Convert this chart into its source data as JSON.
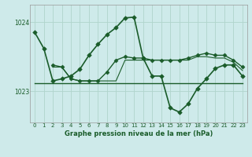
{
  "title": "Graphe pression niveau de la mer (hPa)",
  "bg_color": "#ceeaea",
  "grid_color": "#b0d4cc",
  "line_color": "#1a5c2a",
  "xlim": [
    -0.5,
    23.5
  ],
  "ylim": [
    1022.55,
    1024.25
  ],
  "yticks": [
    1023,
    1024
  ],
  "xticks": [
    0,
    1,
    2,
    3,
    4,
    5,
    6,
    7,
    8,
    9,
    10,
    11,
    12,
    13,
    14,
    15,
    16,
    17,
    18,
    19,
    20,
    21,
    22,
    23
  ],
  "series": [
    {
      "x": [
        0,
        1,
        2,
        3,
        4,
        5,
        6,
        7,
        8,
        9,
        10,
        11,
        12,
        13,
        14,
        15,
        16,
        17,
        18,
        19,
        20,
        21,
        22,
        23
      ],
      "y": [
        1023.85,
        1023.62,
        1023.15,
        1023.18,
        1023.22,
        1023.32,
        1023.52,
        1023.68,
        1023.82,
        1023.92,
        1024.06,
        1024.07,
        1023.48,
        1023.22,
        1023.22,
        1022.76,
        1022.7,
        1022.82,
        1023.04,
        1023.18,
        1023.33,
        1023.38,
        1023.38,
        1023.22
      ],
      "marker": "D",
      "markersize": 2.8,
      "lw": 1.2
    },
    {
      "x": [
        2,
        3,
        4,
        5,
        6,
        7,
        8,
        9,
        10,
        11,
        12,
        13,
        14,
        15,
        16,
        17,
        18,
        19,
        20,
        21,
        22,
        23
      ],
      "y": [
        1023.38,
        1023.35,
        1023.18,
        1023.15,
        1023.15,
        1023.15,
        1023.28,
        1023.45,
        1023.5,
        1023.48,
        1023.48,
        1023.45,
        1023.45,
        1023.45,
        1023.45,
        1023.48,
        1023.52,
        1023.55,
        1023.52,
        1023.52,
        1023.45,
        1023.35
      ],
      "marker": "D",
      "markersize": 2.5,
      "lw": 1.0
    },
    {
      "x": [
        0,
        1,
        2,
        3,
        4,
        5,
        6,
        7,
        8,
        9,
        10,
        11,
        12,
        13,
        14,
        15,
        16,
        17,
        18,
        19,
        20,
        21,
        22,
        23
      ],
      "y": [
        1023.12,
        1023.12,
        1023.12,
        1023.12,
        1023.12,
        1023.12,
        1023.12,
        1023.12,
        1023.12,
        1023.12,
        1023.12,
        1023.12,
        1023.12,
        1023.12,
        1023.12,
        1023.12,
        1023.12,
        1023.12,
        1023.12,
        1023.12,
        1023.12,
        1023.12,
        1023.12,
        1023.12
      ],
      "marker": null,
      "markersize": 0,
      "lw": 1.0
    },
    {
      "x": [
        2,
        3,
        4,
        5,
        6,
        7,
        8,
        9,
        10,
        11,
        12,
        13,
        14,
        15,
        16,
        17,
        18,
        19,
        20,
        21,
        22,
        23
      ],
      "y": [
        1023.35,
        1023.35,
        1023.18,
        1023.15,
        1023.15,
        1023.15,
        1023.15,
        1023.15,
        1023.45,
        1023.45,
        1023.45,
        1023.45,
        1023.45,
        1023.45,
        1023.45,
        1023.45,
        1023.5,
        1023.5,
        1023.48,
        1023.48,
        1023.42,
        1023.3
      ],
      "marker": null,
      "markersize": 0,
      "lw": 0.8
    }
  ]
}
